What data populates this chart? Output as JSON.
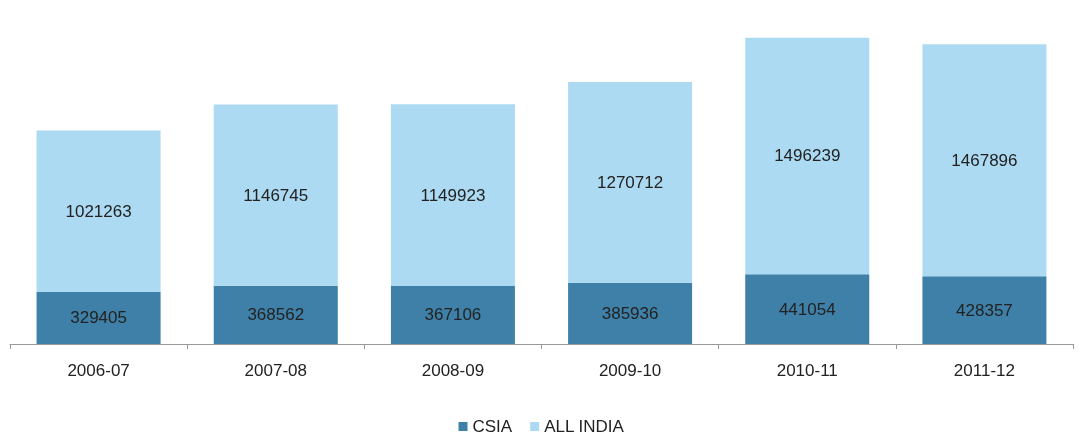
{
  "chart_data": {
    "type": "bar",
    "stacked": true,
    "categories": [
      "2006-07",
      "2007-08",
      "2008-09",
      "2009-10",
      "2010-11",
      "2011-12"
    ],
    "series": [
      {
        "name": "CSIA",
        "color": "#3f80a8",
        "values": [
          329405,
          368562,
          367106,
          385936,
          441054,
          428357
        ]
      },
      {
        "name": "ALL INDIA",
        "color": "#acdaf2",
        "values": [
          1021263,
          1146745,
          1149923,
          1270712,
          1496239,
          1467896
        ]
      }
    ],
    "data_labels": true,
    "legend": "bottom"
  }
}
